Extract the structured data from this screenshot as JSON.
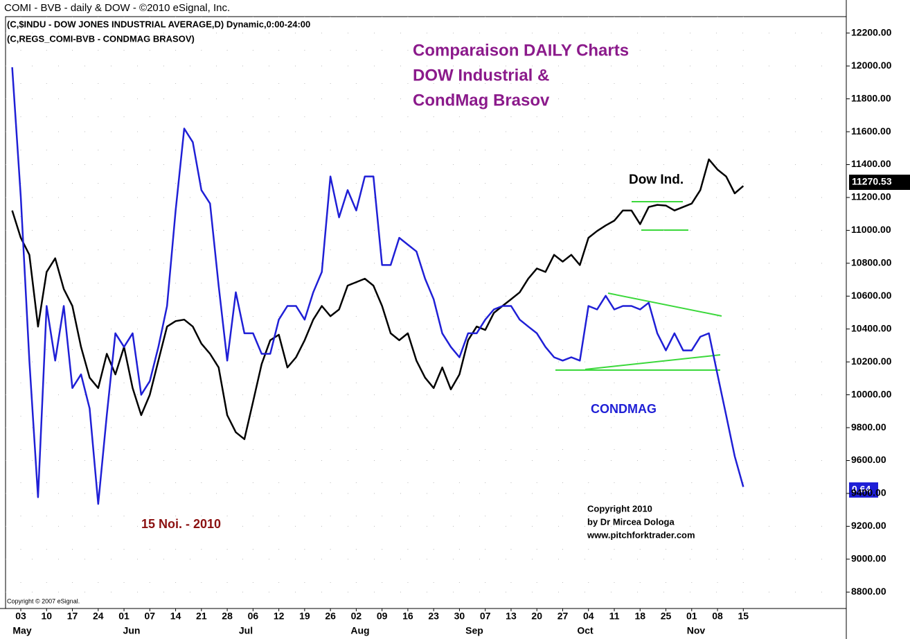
{
  "chart_data": {
    "type": "line",
    "header": "COMI - BVB - daily & DOW - ©2010 eSignal, Inc.",
    "legend_lines": [
      "(C,$INDU - DOW JONES INDUSTRIAL AVERAGE,D) Dynamic,0:00-24:00",
      "(C,REGS_COMI-BVB - CONDMAG BRASOV)"
    ],
    "title": [
      "Comparaison DAILY Charts",
      "DOW Industrial &",
      "CondMag Brasov"
    ],
    "date_note": "15 Noi. - 2010",
    "copyright": [
      "Copyright 2010",
      "by Dr Mircea Dologa",
      "www.pitchforktrader.com"
    ],
    "footer": "Copyright © 2007 eSignal.",
    "last_labels": [
      "11270.53",
      "0.64"
    ],
    "months": [
      "May",
      "Jun",
      "Jul",
      "Aug",
      "Sep",
      "Oct",
      "Nov"
    ],
    "categories": [
      null,
      "03",
      null,
      null,
      "10",
      null,
      null,
      "17",
      null,
      null,
      "24",
      null,
      null,
      "01",
      null,
      null,
      "07",
      null,
      null,
      "14",
      null,
      null,
      "21",
      null,
      null,
      "28",
      null,
      null,
      "06",
      null,
      null,
      "12",
      null,
      null,
      "19",
      null,
      null,
      "26",
      null,
      null,
      "02",
      null,
      null,
      "09",
      null,
      null,
      "16",
      null,
      null,
      "23",
      null,
      null,
      "30",
      null,
      null,
      "07",
      null,
      null,
      "13",
      null,
      null,
      "20",
      null,
      null,
      "27",
      null,
      null,
      "04",
      null,
      null,
      "11",
      null,
      null,
      "18",
      null,
      null,
      "25",
      null,
      null,
      "01",
      null,
      null,
      "08",
      null,
      null,
      "15"
    ],
    "series": [
      {
        "name": "Dow Ind.",
        "color": "#000000",
        "values": [
          11121,
          10955,
          10851,
          10415,
          10747,
          10830,
          10643,
          10540,
          10291,
          10104,
          10041,
          10249,
          10124,
          10291,
          10041,
          9876,
          10000,
          10208,
          10415,
          10448,
          10457,
          10415,
          10311,
          10249,
          10166,
          9876,
          9772,
          9730,
          9958,
          10187,
          10332,
          10365,
          10166,
          10228,
          10332,
          10457,
          10540,
          10478,
          10519,
          10664,
          10685,
          10706,
          10664,
          10540,
          10374,
          10332,
          10374,
          10208,
          10104,
          10041,
          10166,
          10033,
          10124,
          10332,
          10415,
          10394,
          10498,
          10540,
          10581,
          10623,
          10706,
          10768,
          10747,
          10851,
          10810,
          10851,
          10789,
          10955,
          10996,
          11030,
          11059,
          11121,
          11121,
          11038,
          11142,
          11155,
          11151,
          11121,
          11142,
          11163,
          11245,
          11432,
          11370,
          11328,
          11225,
          11270
        ]
      },
      {
        "name": "CONDMAG",
        "color": "#1f1fd6",
        "values": [
          11992,
          11204,
          10208,
          9377,
          10540,
          10208,
          10540,
          10041,
          10124,
          9917,
          9336,
          9876,
          10374,
          10291,
          10374,
          10000,
          10083,
          10291,
          10540,
          11121,
          11619,
          11536,
          11245,
          11163,
          10664,
          10208,
          10623,
          10374,
          10374,
          10249,
          10249,
          10457,
          10540,
          10540,
          10457,
          10623,
          10747,
          11328,
          11079,
          11245,
          11121,
          11328,
          11328,
          10789,
          10789,
          10955,
          10913,
          10872,
          10706,
          10581,
          10374,
          10291,
          10228,
          10374,
          10374,
          10457,
          10519,
          10540,
          10540,
          10457,
          10415,
          10374,
          10291,
          10228,
          10208,
          10228,
          10208,
          10540,
          10519,
          10602,
          10519,
          10540,
          10540,
          10519,
          10560,
          10374,
          10270,
          10374,
          10270,
          10270,
          10353,
          10374,
          10124,
          9876,
          9626,
          9440
        ]
      }
    ],
    "ylim": [
      8700,
      12300
    ],
    "yticks": [
      {
        "value": 8800,
        "label": "8800.00"
      },
      {
        "value": 9000,
        "label": "9000.00"
      },
      {
        "value": 9200,
        "label": "9200.00"
      },
      {
        "value": 9400,
        "label": "9400.00"
      },
      {
        "value": 9600,
        "label": "9600.00"
      },
      {
        "value": 9800,
        "label": "9800.00"
      },
      {
        "value": 10000,
        "label": "10000.00"
      },
      {
        "value": 10200,
        "label": "10200.00"
      },
      {
        "value": 10400,
        "label": "10400.00"
      },
      {
        "value": 10600,
        "label": "10600.00"
      },
      {
        "value": 10800,
        "label": "10800.00"
      },
      {
        "value": 11000,
        "label": "11000.00"
      },
      {
        "value": 11200,
        "label": "11200.00"
      },
      {
        "value": 11400,
        "label": "11400.00"
      },
      {
        "value": 11600,
        "label": "11600.00"
      },
      {
        "value": 11800,
        "label": "11800.00"
      },
      {
        "value": 12000,
        "label": "12000.00"
      },
      {
        "value": 12200,
        "label": "12200.00"
      }
    ],
    "grid": true
  }
}
